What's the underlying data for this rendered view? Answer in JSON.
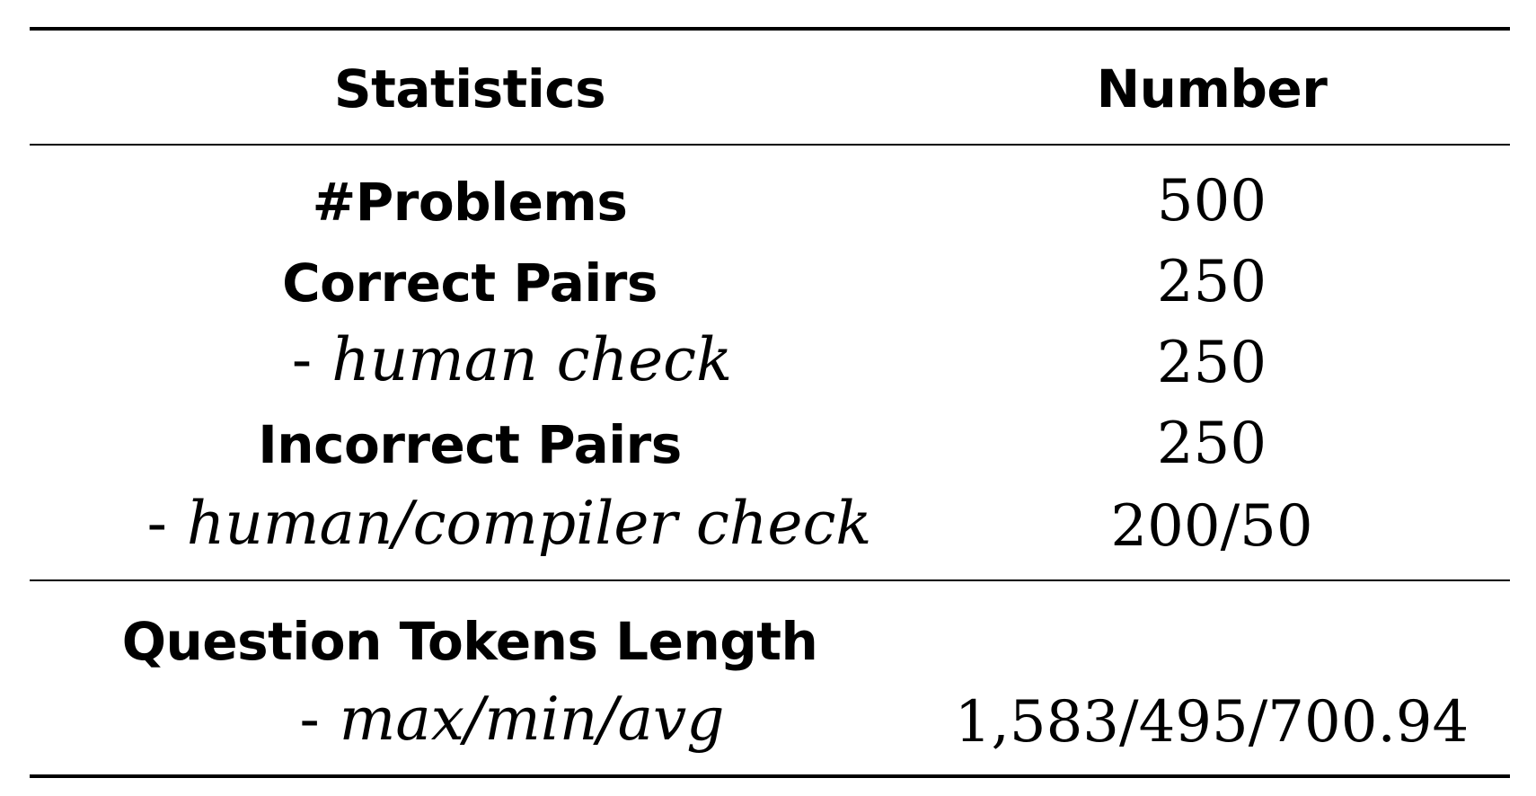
{
  "table": {
    "headers": {
      "statistics": "Statistics",
      "number": "Number"
    },
    "rows": [
      {
        "label": "#Problems",
        "value": "500"
      },
      {
        "label": "Correct Pairs",
        "value": "250"
      },
      {
        "sub_label": "human check",
        "value": "250"
      },
      {
        "label": "Incorrect Pairs",
        "value": "250"
      },
      {
        "sub_label": "human/compiler check",
        "value": "200/50"
      }
    ],
    "section2": {
      "label": "Question Tokens Length",
      "sub_label": "max/min/avg",
      "value": "1,583/495/700.94"
    },
    "dash": "-"
  }
}
